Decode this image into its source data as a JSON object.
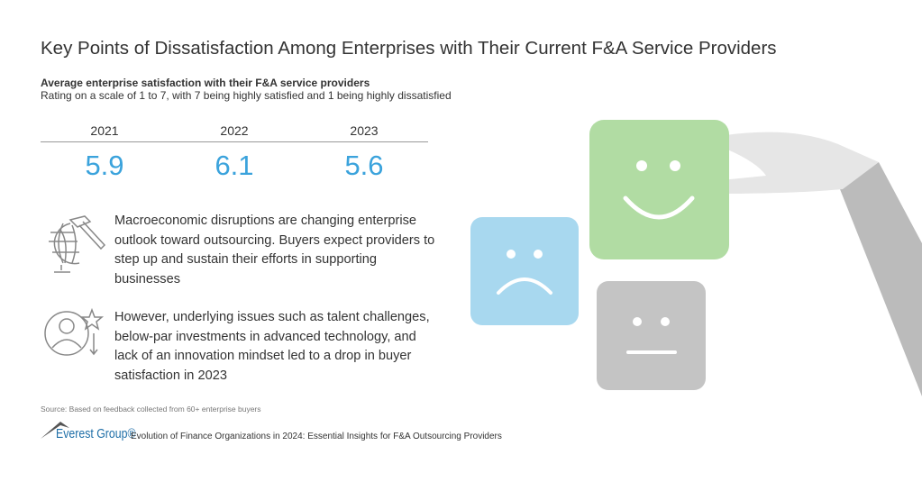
{
  "title": "Key Points of Dissatisfaction Among Enterprises with Their Current F&A Service Providers",
  "subtitle": "Average enterprise satisfaction with their F&A service providers",
  "rating_note": "Rating on a scale of 1 to 7, with 7 being highly satisfied and 1 being highly dissatisfied",
  "scores": [
    {
      "year": "2021",
      "value": "5.9"
    },
    {
      "year": "2022",
      "value": "6.1"
    },
    {
      "year": "2023",
      "value": "5.6"
    }
  ],
  "points": [
    {
      "icon": "globe-hammer-icon",
      "text": "Macroeconomic disruptions are changing enterprise outlook toward outsourcing. Buyers expect providers to step up and sustain their efforts in supporting businesses"
    },
    {
      "icon": "person-star-down-icon",
      "text": "However, underlying issues such as talent challenges, below-par investments in advanced technology, and lack of an innovation mindset led to a drop in buyer satisfaction in 2023"
    }
  ],
  "source": "Source: Based on feedback collected from 60+ enterprise buyers",
  "brand": "Everest Group®",
  "footer": "Evolution of Finance Organizations in 2024: Essential Insights for F&A Outsourcing Providers",
  "colors": {
    "accent": "#3ba3dc",
    "happy": "#b1dca3",
    "sad": "#a8d8ef",
    "neutral": "#c4c4c4"
  }
}
